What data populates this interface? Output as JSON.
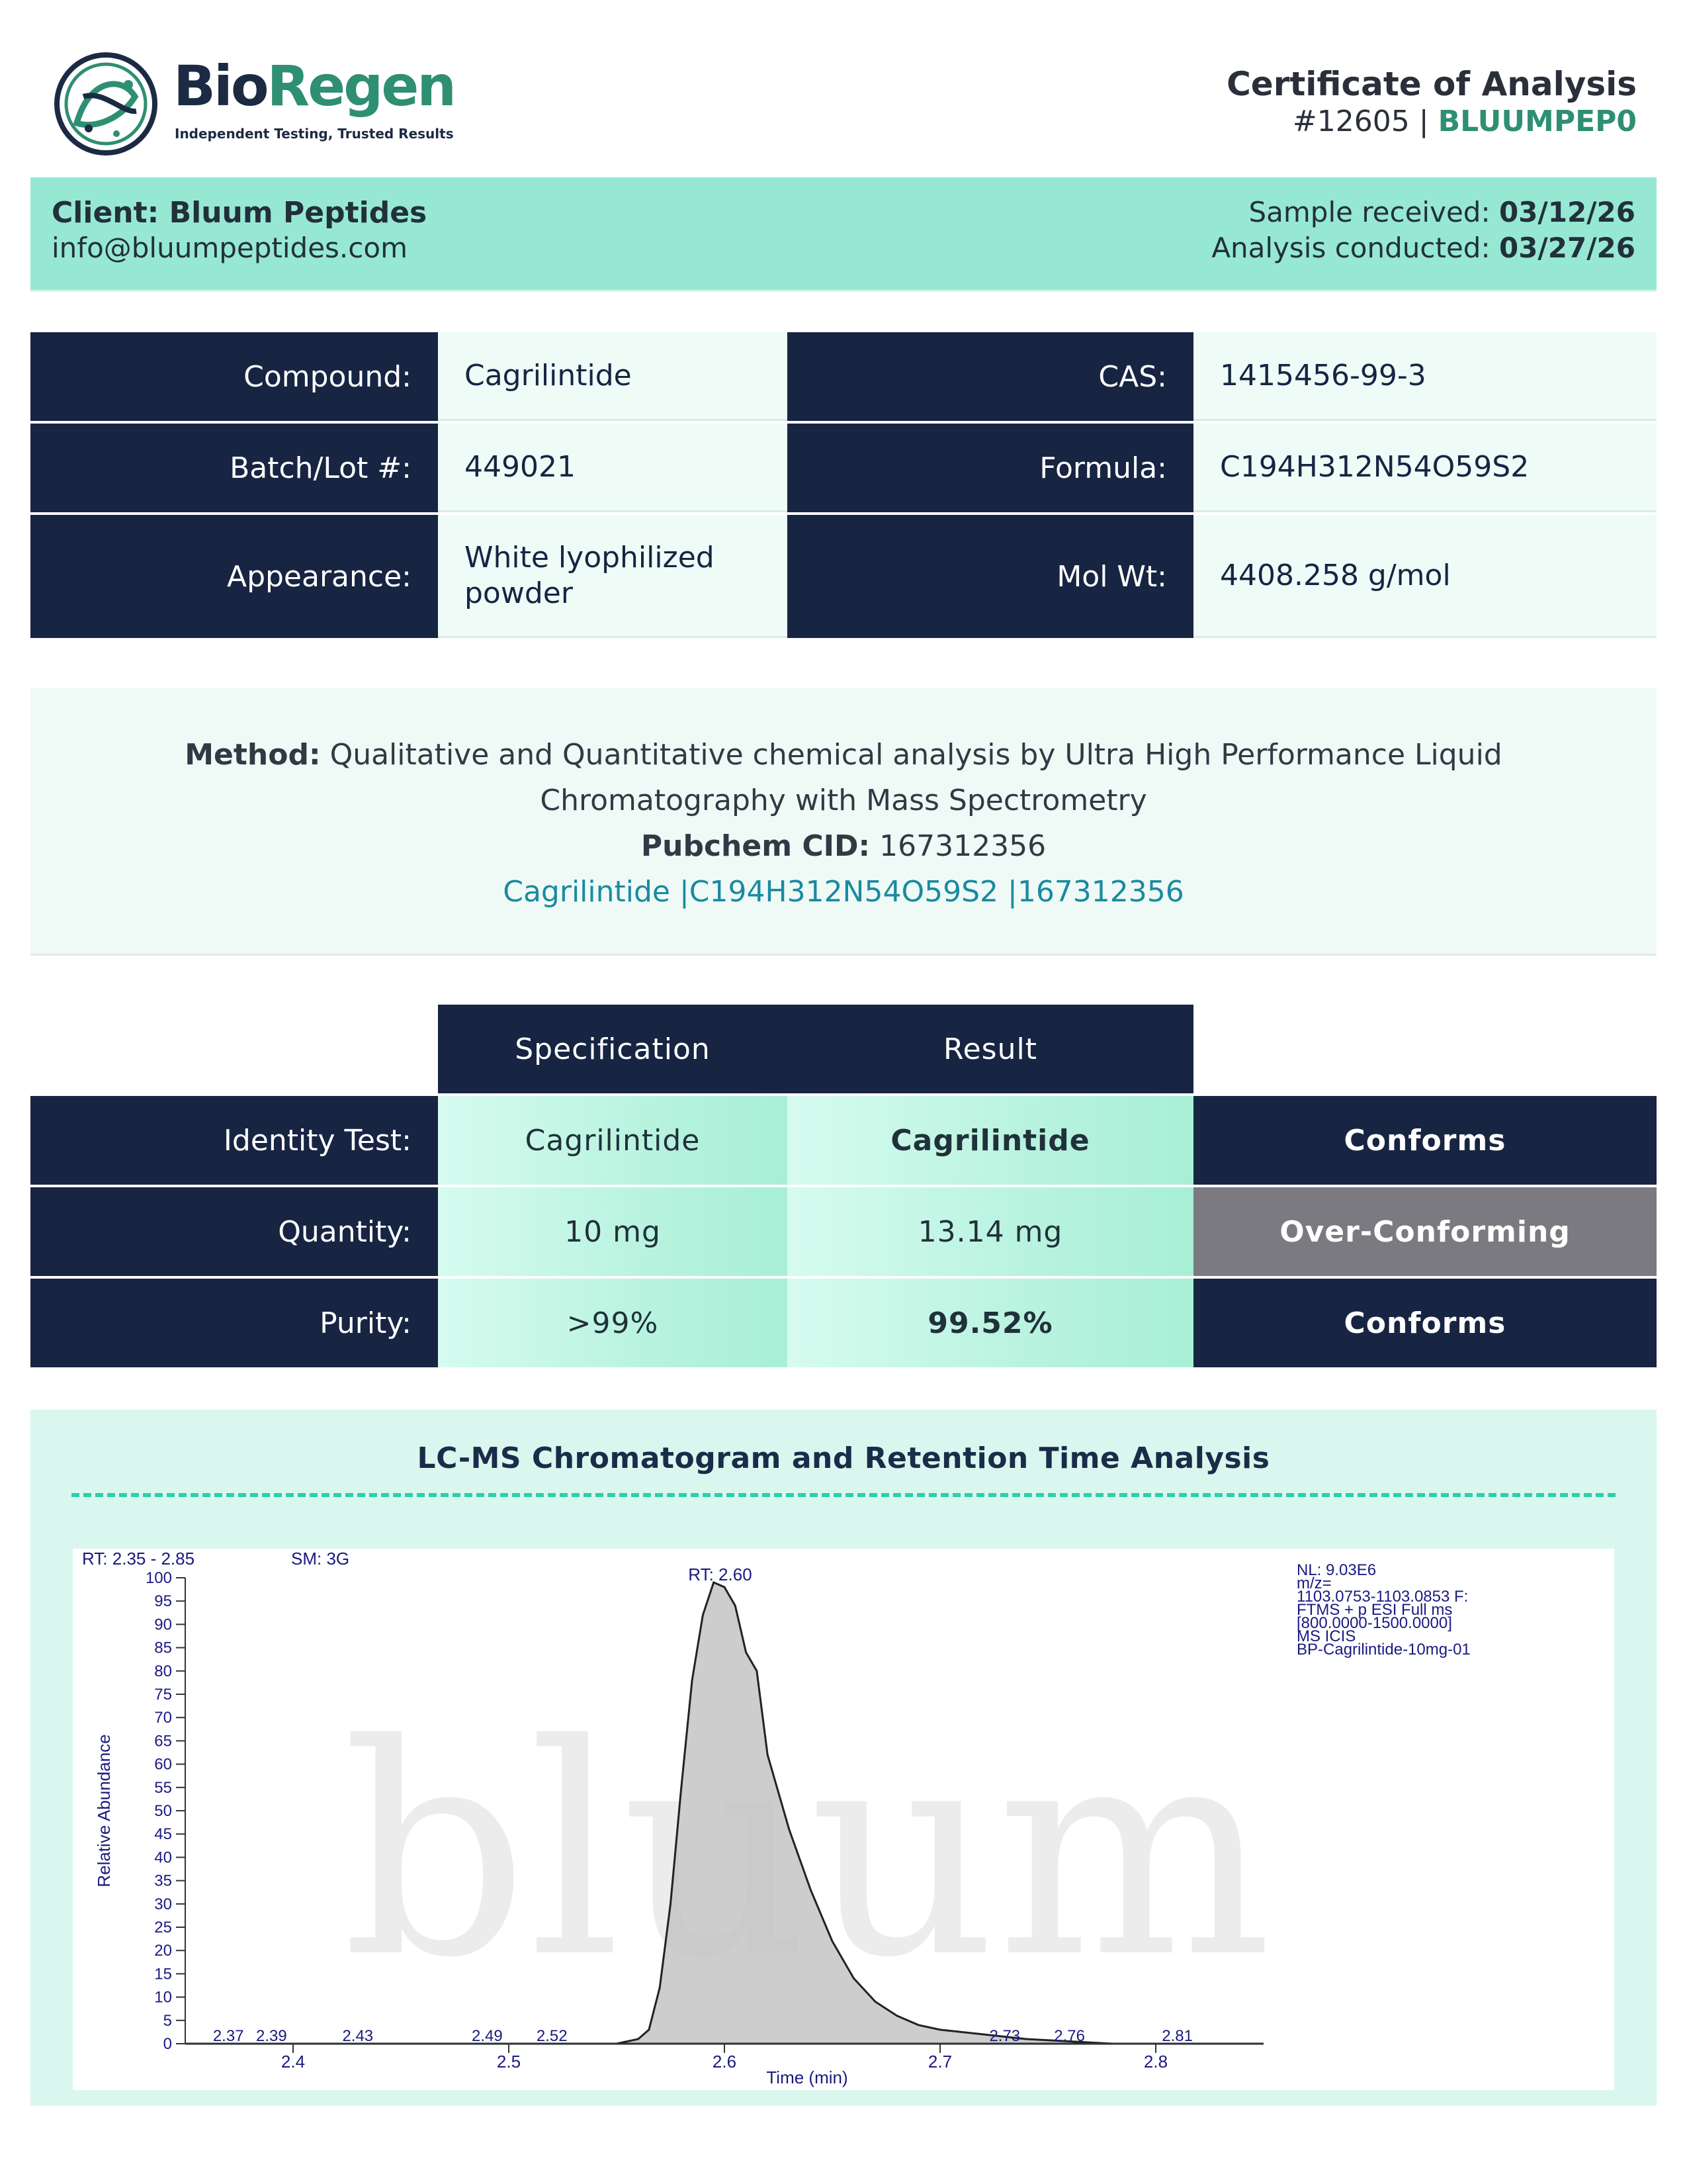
{
  "header": {
    "brand_part1": "Bio",
    "brand_part2": "Regen",
    "tagline": "Independent Testing, Trusted Results",
    "doc_title": "Certificate of Analysis",
    "doc_number": "#12605",
    "separator": "|",
    "doc_code": "BLUUMPEP0"
  },
  "client": {
    "name": "Client: Bluum Peptides",
    "email": "info@bluumpeptides.com",
    "sample_received_label": "Sample received:",
    "sample_received_date": "03/12/26",
    "analysis_conducted_label": "Analysis conducted:",
    "analysis_conducted_date": "03/27/26"
  },
  "info": {
    "compound_label": "Compound:",
    "compound": "Cagrilintide",
    "cas_label": "CAS:",
    "cas": "1415456-99-3",
    "batch_label": "Batch/Lot #:",
    "batch": "449021",
    "formula_label": "Formula:",
    "formula": "C194H312N54O59S2",
    "appearance_label": "Appearance:",
    "appearance_line1": "White lyophilized",
    "appearance_line2": "powder",
    "molwt_label": "Mol Wt:",
    "molwt": "4408.258 g/mol"
  },
  "method": {
    "label": "Method:",
    "text_line1": "Qualitative and Quantitative chemical analysis by Ultra High Performance Liquid",
    "text_line2": "Chromatography with Mass Spectrometry",
    "pubchem_label": "Pubchem CID:",
    "pubchem_cid": "167312356",
    "link_text": "Cagrilintide |C194H312N54O59S2 |167312356"
  },
  "results": {
    "spec_header": "Specification",
    "result_header": "Result",
    "rows": [
      {
        "label": "Identity Test:",
        "spec": "Cagrilintide",
        "result": "Cagrilintide",
        "status": "Conforms"
      },
      {
        "label": "Quantity:",
        "spec": "10 mg",
        "result": "13.14 mg",
        "status": "Over-Conforming"
      },
      {
        "label": "Purity:",
        "spec": ">99%",
        "result": "99.52%",
        "status": "Conforms"
      }
    ]
  },
  "chromatogram": {
    "section_title": "LC-MS Chromatogram and Retention Time Analysis",
    "rt_range": "RT: 2.35 - 2.85",
    "smoothing": "SM: 3G",
    "peak_label": "RT: 2.60",
    "info_lines": [
      "NL: 9.03E6",
      "m/z=",
      "1103.0753-1103.0853 F:",
      "FTMS + p ESI Full ms",
      "[800.0000-1500.0000]",
      "MS  ICIS",
      "BP-Cagrilintide-10mg-01"
    ],
    "watermark": "bluum",
    "small_peak_labels": [
      "2.37",
      "2.39",
      "2.43",
      "2.49",
      "2.52",
      "2.73",
      "2.76",
      "2.81"
    ]
  },
  "chart_data": {
    "type": "area",
    "title": "",
    "xlabel": "Time (min)",
    "ylabel": "Relative Abundance",
    "xlim": [
      2.35,
      2.85
    ],
    "ylim": [
      0,
      100
    ],
    "x_ticks": [
      "2.4",
      "2.5",
      "2.6",
      "2.7",
      "2.8"
    ],
    "y_ticks": [
      "0",
      "5",
      "10",
      "15",
      "20",
      "25",
      "30",
      "35",
      "40",
      "45",
      "50",
      "55",
      "60",
      "65",
      "70",
      "75",
      "80",
      "85",
      "90",
      "95",
      "100"
    ],
    "x": [
      2.35,
      2.55,
      2.56,
      2.565,
      2.57,
      2.575,
      2.58,
      2.585,
      2.59,
      2.595,
      2.6,
      2.605,
      2.61,
      2.615,
      2.62,
      2.63,
      2.64,
      2.65,
      2.66,
      2.67,
      2.68,
      2.69,
      2.7,
      2.72,
      2.74,
      2.76,
      2.78,
      2.85
    ],
    "y": [
      0,
      0,
      1,
      3,
      12,
      30,
      55,
      78,
      92,
      99,
      98,
      94,
      84,
      80,
      62,
      46,
      33,
      22,
      14,
      9,
      6,
      4,
      3,
      2,
      1,
      0.5,
      0,
      0
    ],
    "colors": {
      "fill": "#c4c4c4",
      "line": "#222222",
      "text": "#1a1a80"
    }
  },
  "colors": {
    "navy": "#172442",
    "mint": "#96e8d3",
    "brand_green": "#2e8f72",
    "over_conforming": "#7b7a80"
  }
}
